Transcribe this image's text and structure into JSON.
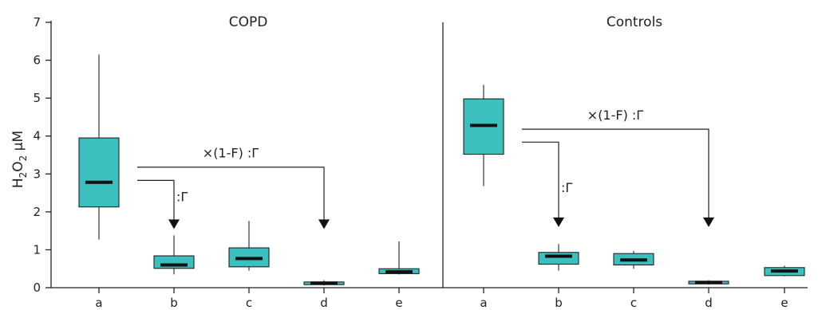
{
  "chart_data": {
    "type": "box",
    "ylabel": "H2O2 µM",
    "ylabel_parts": {
      "h": "H",
      "s1": "2",
      "o": "O",
      "s2": "2",
      "unit": " µM"
    },
    "ylim": [
      0,
      7
    ],
    "yticks": [
      0,
      1,
      2,
      3,
      4,
      5,
      6,
      7
    ],
    "box_color": "#3bbfbf",
    "median_color": "#111111",
    "panels": [
      {
        "title": "COPD",
        "categories": [
          "a",
          "b",
          "c",
          "d",
          "e"
        ],
        "boxes": [
          {
            "category": "a",
            "min": 1.27,
            "q1": 2.13,
            "median": 2.78,
            "q3": 3.95,
            "max": 6.15
          },
          {
            "category": "b",
            "min": 0.35,
            "q1": 0.51,
            "median": 0.6,
            "q3": 0.84,
            "max": 1.38
          },
          {
            "category": "c",
            "min": 0.45,
            "q1": 0.55,
            "median": 0.77,
            "q3": 1.05,
            "max": 1.76
          },
          {
            "category": "d",
            "min": 0.06,
            "q1": 0.08,
            "median": 0.12,
            "q3": 0.15,
            "max": 0.2
          },
          {
            "category": "e",
            "min": 0.35,
            "q1": 0.37,
            "median": 0.42,
            "q3": 0.5,
            "max": 1.22
          }
        ],
        "annotations": [
          {
            "label": "×(1-F) :Γ",
            "from": "a",
            "to": "d"
          },
          {
            "label": ":Γ",
            "from": "a",
            "to": "b"
          }
        ]
      },
      {
        "title": "Controls",
        "categories": [
          "a",
          "b",
          "c",
          "d",
          "e"
        ],
        "boxes": [
          {
            "category": "a",
            "min": 2.68,
            "q1": 3.52,
            "median": 4.28,
            "q3": 4.98,
            "max": 5.35
          },
          {
            "category": "b",
            "min": 0.45,
            "q1": 0.62,
            "median": 0.83,
            "q3": 0.93,
            "max": 1.15
          },
          {
            "category": "c",
            "min": 0.5,
            "q1": 0.6,
            "median": 0.73,
            "q3": 0.9,
            "max": 0.97
          },
          {
            "category": "d",
            "min": 0.08,
            "q1": 0.1,
            "median": 0.14,
            "q3": 0.17,
            "max": 0.2
          },
          {
            "category": "e",
            "min": 0.3,
            "q1": 0.32,
            "median": 0.44,
            "q3": 0.53,
            "max": 0.58
          }
        ],
        "annotations": [
          {
            "label": "×(1-F) :Γ",
            "from": "a",
            "to": "d"
          },
          {
            "label": ":Γ",
            "from": "a",
            "to": "b"
          }
        ]
      }
    ]
  }
}
